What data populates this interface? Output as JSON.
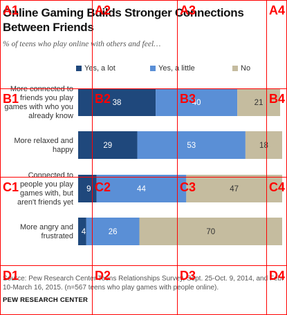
{
  "title": "Online Gaming Builds Stronger Connections Between Friends",
  "subtitle": "% of teens who play online with others and feel…",
  "source": "Source: Pew Research Center Teens Relationships Survey, Sept. 25-Oct. 9, 2014, and Feb. 10-March 16, 2015. (n=567 teens who play games with people online).",
  "brand": "PEW RESEARCH CENTER",
  "colors": {
    "yes_a_lot": "#1f487c",
    "yes_a_little": "#5a8fd6",
    "no": "#c5bc9f"
  },
  "chart_data": {
    "type": "bar",
    "orientation": "horizontal",
    "stacked": true,
    "categories": [
      "More connected to friends you play games with who you already know",
      "More relaxed and happy",
      "Connected to people you play games with, but aren't friends yet",
      "More angry and frustrated"
    ],
    "category_lines": [
      [
        "More connected to",
        "friends you play",
        "games with who you",
        "already know"
      ],
      [
        "More relaxed and",
        "happy"
      ],
      [
        "Connected to",
        "people you play",
        "games with, but",
        "aren't friends yet"
      ],
      [
        "More angry and",
        "frustrated"
      ]
    ],
    "series": [
      {
        "name": "Yes, a lot",
        "values": [
          38,
          29,
          9,
          4
        ]
      },
      {
        "name": "Yes, a little",
        "values": [
          40,
          53,
          44,
          26
        ]
      },
      {
        "name": "No",
        "values": [
          21,
          18,
          47,
          70
        ]
      }
    ],
    "legend_position": "top",
    "grid": false
  },
  "grid_overlay": {
    "rows": [
      "A",
      "B",
      "C",
      "D"
    ],
    "cols": [
      "1",
      "2",
      "3",
      "4"
    ]
  }
}
